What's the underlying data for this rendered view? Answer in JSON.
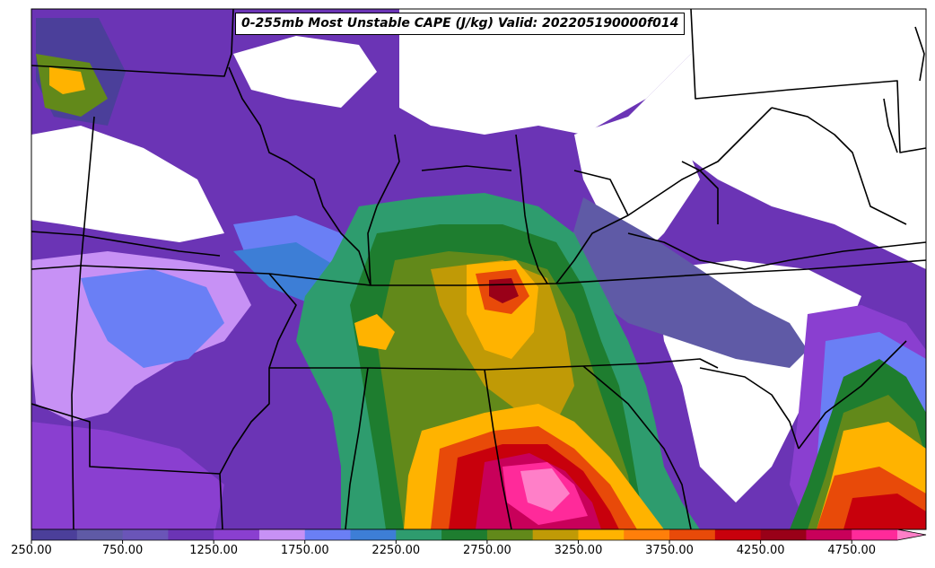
{
  "title": "0-255mb Most Unstable CAPE (J/kg) Valid: 202205190000f014",
  "colorbar": {
    "min": 250,
    "max": 5000,
    "step": 250,
    "extend": "max",
    "colors": [
      "#4b3f9a",
      "#5f5aa6",
      "#6a55b8",
      "#6b34b5",
      "#8a3fd0",
      "#c791f5",
      "#6a7ff5",
      "#3d7ed6",
      "#2e9c6e",
      "#1e7d2f",
      "#62891a",
      "#c09a06",
      "#ffb300",
      "#ff7f0a",
      "#e84a09",
      "#c8000c",
      "#990018",
      "#c8005a",
      "#ff2a9a",
      "#ff7fc8"
    ],
    "tick_labels": [
      "250.00",
      "750.00",
      "1250.00",
      "1750.00",
      "2250.00",
      "2750.00",
      "3250.00",
      "3750.00",
      "4250.00",
      "4750.00"
    ]
  }
}
